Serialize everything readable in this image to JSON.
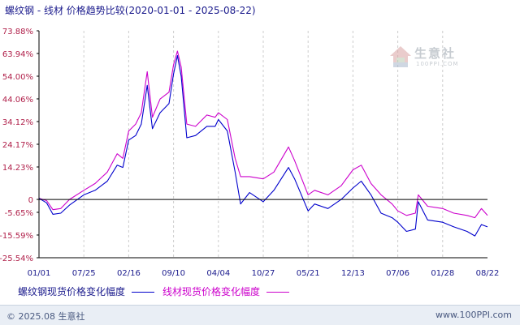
{
  "title": "螺纹钢 - 线材 价格趋势比较(2020-01-01 - 2025-08-22)",
  "watermark": {
    "brand": "生意社",
    "url": "100PPI.COM",
    "icon": "house-logo-icon"
  },
  "footer": {
    "left": "© 2025.08 生意社",
    "right": "www.100PPI.com"
  },
  "colors": {
    "series1": "#0000cc",
    "series2": "#cc00cc",
    "axis": "#000000",
    "grid": "#cccccc"
  },
  "chart_data": {
    "type": "line",
    "title": "螺纹钢 - 线材 价格趋势比较(2020-01-01 - 2025-08-22)",
    "x_start": "2020-01-01",
    "x_end": "2025-08-22",
    "x_tick_labels": [
      "01/01",
      "07/25",
      "02/16",
      "09/10",
      "04/04",
      "10/27",
      "05/21",
      "12/13",
      "07/06",
      "01/28",
      "08/22"
    ],
    "y_tick_labels": [
      "73.88%",
      "63.94%",
      "54.00%",
      "44.06%",
      "34.12%",
      "24.17%",
      "14.23%",
      "0",
      "-5.65%",
      "-15.59%",
      "-25.54%"
    ],
    "y_tick_values": [
      73.88,
      63.94,
      54.0,
      44.06,
      34.12,
      24.17,
      14.23,
      0,
      -5.65,
      -15.59,
      -25.54
    ],
    "ylim": [
      -25.54,
      73.88
    ],
    "grid": "vertical-dashed",
    "legend_position": "bottom",
    "series": [
      {
        "name": "螺纹钢现货价格变化幅度",
        "x": [
          "2020-01-01",
          "2020-02-05",
          "2020-03-05",
          "2020-04-10",
          "2020-05-20",
          "2020-07-25",
          "2020-09-15",
          "2020-11-10",
          "2020-12-25",
          "2021-01-20",
          "2021-02-16",
          "2021-03-20",
          "2021-04-15",
          "2021-05-12",
          "2021-06-05",
          "2021-07-10",
          "2021-08-20",
          "2021-09-10",
          "2021-09-28",
          "2021-10-15",
          "2021-11-10",
          "2021-12-20",
          "2022-02-10",
          "2022-03-20",
          "2022-04-04",
          "2022-05-15",
          "2022-06-20",
          "2022-07-15",
          "2022-08-25",
          "2022-10-27",
          "2022-12-15",
          "2023-02-20",
          "2023-03-20",
          "2023-05-21",
          "2023-06-20",
          "2023-08-20",
          "2023-10-20",
          "2023-12-13",
          "2024-01-20",
          "2024-03-05",
          "2024-04-20",
          "2024-06-10",
          "2024-07-06",
          "2024-08-15",
          "2024-09-25",
          "2024-10-08",
          "2024-11-20",
          "2025-01-28",
          "2025-03-20",
          "2025-05-20",
          "2025-06-25",
          "2025-07-25",
          "2025-08-22"
        ],
        "values": [
          0.5,
          -1.5,
          -6.5,
          -6,
          -2.5,
          2,
          4,
          8,
          15,
          14,
          26,
          28,
          33,
          50,
          31,
          38,
          42,
          55,
          63,
          54,
          27,
          28,
          32,
          32,
          35,
          30,
          12,
          -2,
          3,
          -1,
          4,
          14,
          9,
          -5,
          -2,
          -4,
          0,
          5,
          8,
          2,
          -6,
          -8,
          -10,
          -14,
          -13,
          -1,
          -9,
          -10,
          -12,
          -14,
          -16,
          -11,
          -12
        ]
      },
      {
        "name": "线材现货价格变化幅度",
        "x": [
          "2020-01-01",
          "2020-02-05",
          "2020-03-05",
          "2020-04-10",
          "2020-05-20",
          "2020-07-25",
          "2020-09-15",
          "2020-11-10",
          "2020-12-25",
          "2021-01-20",
          "2021-02-16",
          "2021-03-20",
          "2021-04-15",
          "2021-05-12",
          "2021-06-05",
          "2021-07-10",
          "2021-08-20",
          "2021-09-10",
          "2021-09-28",
          "2021-10-15",
          "2021-11-10",
          "2021-12-20",
          "2022-02-10",
          "2022-03-20",
          "2022-04-04",
          "2022-05-15",
          "2022-06-20",
          "2022-07-15",
          "2022-08-25",
          "2022-10-27",
          "2022-12-15",
          "2023-02-20",
          "2023-03-20",
          "2023-05-21",
          "2023-06-20",
          "2023-08-20",
          "2023-10-20",
          "2023-12-13",
          "2024-01-20",
          "2024-03-05",
          "2024-04-20",
          "2024-06-10",
          "2024-07-06",
          "2024-08-15",
          "2024-09-25",
          "2024-10-08",
          "2024-11-20",
          "2025-01-28",
          "2025-03-20",
          "2025-05-20",
          "2025-06-25",
          "2025-07-25",
          "2025-08-22"
        ],
        "values": [
          0.5,
          -0.5,
          -4.5,
          -4,
          0,
          4,
          7,
          12,
          20,
          18,
          30,
          33,
          38,
          56,
          36,
          44,
          47,
          59,
          65,
          58,
          33,
          32,
          37,
          36,
          38,
          35,
          18,
          10,
          10,
          9,
          12,
          23,
          17,
          2,
          4,
          2,
          6,
          13,
          15,
          7,
          2,
          -2,
          -5,
          -7,
          -6,
          2,
          -3,
          -4,
          -6,
          -7,
          -8,
          -4,
          -7
        ]
      }
    ]
  }
}
